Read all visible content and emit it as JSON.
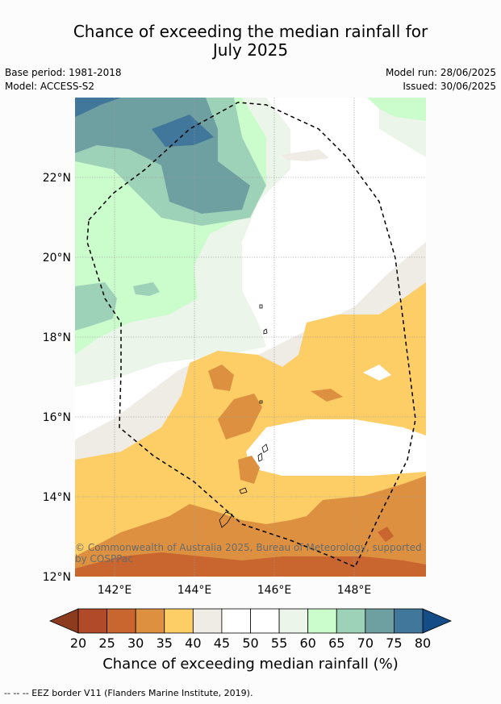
{
  "title_line1": "Chance of exceeding the median rainfall for",
  "title_line2": "July 2025",
  "meta": {
    "base_period": "Base period: 1981-2018",
    "model": "Model: ACCESS-S2",
    "model_run": "Model run: 28/06/2025",
    "issued": "Issued: 30/06/2025"
  },
  "axes": {
    "lat_ticks": [
      "22°N",
      "20°N",
      "18°N",
      "16°N",
      "14°N",
      "12°N"
    ],
    "lon_ticks": [
      "142°E",
      "144°E",
      "146°E",
      "148°E"
    ]
  },
  "copyright_line1": "© Commonwealth of Australia 2025, Bureau of Meteorology, supported",
  "copyright_line2": "by COSPPac",
  "colorbar": {
    "label": "Chance of exceeding median rainfall (%)",
    "ticks": [
      "20",
      "25",
      "30",
      "35",
      "40",
      "45",
      "50",
      "55",
      "60",
      "65",
      "70",
      "75",
      "80"
    ],
    "colors": [
      "#8c3b1f",
      "#b14a28",
      "#c9652f",
      "#dd9140",
      "#fdcd66",
      "#efebe5",
      "#ffffff",
      "#ffffff",
      "#ebf5e9",
      "#cbfdcc",
      "#9dd1b8",
      "#6fa0a1",
      "#41779a",
      "#134c86"
    ]
  },
  "footer": "--  --  -- EEZ border V11 (Flanders Marine Institute, 2019)."
}
